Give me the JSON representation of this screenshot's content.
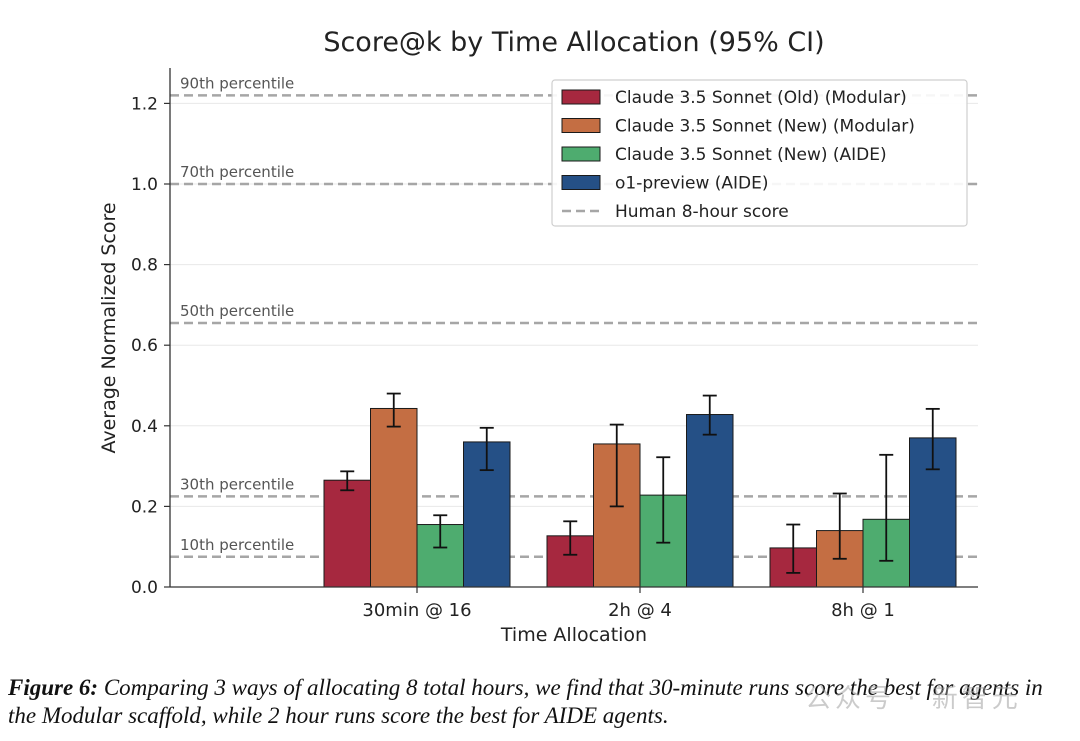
{
  "chart_data": {
    "type": "bar",
    "title": "Score@k by Time Allocation (95% CI)",
    "xlabel": "Time Allocation",
    "ylabel": "Average Normalized Score",
    "categories": [
      "30min @ 16",
      "2h @ 4",
      "8h @ 1"
    ],
    "ylim": [
      0,
      1.28
    ],
    "yticks": [
      0.0,
      0.2,
      0.4,
      0.6,
      0.8,
      1.0,
      1.2
    ],
    "ytick_labels": [
      "0.0",
      "0.2",
      "0.4",
      "0.6",
      "0.8",
      "1.0",
      "1.2"
    ],
    "grid": true,
    "legend_position": "top-right",
    "series": [
      {
        "name": "Claude 3.5 Sonnet (Old) (Modular)",
        "color": "#a6283f",
        "values": [
          0.265,
          0.127,
          0.097
        ],
        "ci_low": [
          0.24,
          0.08,
          0.035
        ],
        "ci_high": [
          0.287,
          0.163,
          0.155
        ]
      },
      {
        "name": "Claude 3.5 Sonnet (New) (Modular)",
        "color": "#c46e43",
        "values": [
          0.443,
          0.355,
          0.14
        ],
        "ci_low": [
          0.398,
          0.2,
          0.07
        ],
        "ci_high": [
          0.48,
          0.403,
          0.232
        ]
      },
      {
        "name": "Claude 3.5 Sonnet (New) (AIDE)",
        "color": "#4eac6f",
        "values": [
          0.155,
          0.228,
          0.168
        ],
        "ci_low": [
          0.098,
          0.11,
          0.065
        ],
        "ci_high": [
          0.178,
          0.322,
          0.328
        ]
      },
      {
        "name": "o1-preview (AIDE)",
        "color": "#255086",
        "values": [
          0.36,
          0.428,
          0.37
        ],
        "ci_low": [
          0.29,
          0.378,
          0.292
        ],
        "ci_high": [
          0.395,
          0.475,
          0.442
        ]
      }
    ],
    "reference_lines": [
      {
        "label": "90th percentile",
        "value": 1.22
      },
      {
        "label": "70th percentile",
        "value": 1.0
      },
      {
        "label": "50th percentile",
        "value": 0.655
      },
      {
        "label": "30th percentile",
        "value": 0.225
      },
      {
        "label": "10th percentile",
        "value": 0.075
      }
    ],
    "reference_legend_label": "Human 8-hour score",
    "reference_color": "#a6a6a6"
  },
  "caption": {
    "label": "Figure 6:",
    "text": " Comparing 3 ways of allocating 8 total hours, we find that 30-minute runs score the best for agents in the Modular scaffold, while 2 hour runs score the best for AIDE agents."
  },
  "watermark": "公众号 · 新智元"
}
